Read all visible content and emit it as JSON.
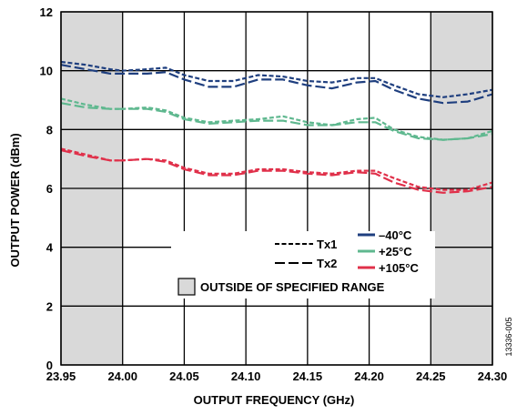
{
  "chart_data": {
    "type": "line",
    "title": "",
    "xlabel": "OUTPUT FREQUENCY (GHz)",
    "ylabel": "OUTPUT POWER (dBm)",
    "xlim": [
      23.95,
      24.3
    ],
    "ylim": [
      0,
      12
    ],
    "x_ticks": [
      23.95,
      24.0,
      24.05,
      24.1,
      24.15,
      24.2,
      24.25,
      24.3
    ],
    "x_tick_labels": [
      "23.95",
      "24.00",
      "24.05",
      "24.10",
      "24.15",
      "24.20",
      "24.25",
      "24.30"
    ],
    "y_ticks": [
      0,
      2,
      4,
      6,
      8,
      10,
      12
    ],
    "y_tick_labels": [
      "0",
      "2",
      "4",
      "6",
      "8",
      "10",
      "12"
    ],
    "grid": true,
    "legend_position": "lower-right",
    "legend": {
      "tx1": "Tx1",
      "tx2": "Tx2",
      "temp_neg40": "–40°C",
      "temp_25": "+25°C",
      "temp_105": "+105°C",
      "outside_range": "OUTSIDE OF SPECIFIED RANGE"
    },
    "shaded_ranges": [
      [
        23.95,
        24.0
      ],
      [
        24.25,
        24.3
      ]
    ],
    "colors": {
      "neg40": "#1f3f7f",
      "c25": "#5fb88f",
      "c105": "#e0304a",
      "shade": "#d9d9d9"
    },
    "figure_id": "13336-005",
    "series": [
      {
        "name": "Tx1",
        "temp": "neg40",
        "dash": "tx1",
        "x": [
          23.95,
          23.97,
          23.99,
          24.0,
          24.02,
          24.035,
          24.05,
          24.07,
          24.09,
          24.11,
          24.13,
          24.15,
          24.17,
          24.19,
          24.205,
          24.22,
          24.24,
          24.26,
          24.28,
          24.3
        ],
        "y": [
          10.3,
          10.2,
          10.05,
          10.0,
          10.05,
          10.1,
          9.85,
          9.65,
          9.65,
          9.85,
          9.8,
          9.65,
          9.6,
          9.75,
          9.75,
          9.5,
          9.2,
          9.1,
          9.2,
          9.35
        ]
      },
      {
        "name": "Tx2",
        "temp": "neg40",
        "dash": "tx2",
        "x": [
          23.95,
          23.97,
          23.99,
          24.0,
          24.02,
          24.035,
          24.05,
          24.07,
          24.09,
          24.11,
          24.13,
          24.15,
          24.17,
          24.19,
          24.205,
          24.22,
          24.24,
          24.26,
          24.28,
          24.3
        ],
        "y": [
          10.2,
          10.05,
          9.9,
          9.9,
          9.9,
          9.95,
          9.7,
          9.45,
          9.45,
          9.7,
          9.7,
          9.5,
          9.4,
          9.6,
          9.65,
          9.35,
          9.05,
          8.9,
          8.95,
          9.2
        ]
      },
      {
        "name": "Tx1",
        "temp": "c25",
        "dash": "tx1",
        "x": [
          23.95,
          23.97,
          23.99,
          24.0,
          24.02,
          24.035,
          24.05,
          24.07,
          24.09,
          24.11,
          24.13,
          24.15,
          24.17,
          24.19,
          24.205,
          24.22,
          24.24,
          24.26,
          24.28,
          24.3
        ],
        "y": [
          9.05,
          8.85,
          8.7,
          8.7,
          8.75,
          8.65,
          8.4,
          8.25,
          8.3,
          8.35,
          8.45,
          8.25,
          8.15,
          8.35,
          8.4,
          8.0,
          7.75,
          7.65,
          7.7,
          7.95
        ]
      },
      {
        "name": "Tx2",
        "temp": "c25",
        "dash": "tx2",
        "x": [
          23.95,
          23.97,
          23.99,
          24.0,
          24.02,
          24.035,
          24.05,
          24.07,
          24.09,
          24.11,
          24.13,
          24.15,
          24.17,
          24.19,
          24.205,
          24.22,
          24.24,
          24.26,
          24.28,
          24.3
        ],
        "y": [
          8.9,
          8.75,
          8.7,
          8.7,
          8.7,
          8.6,
          8.35,
          8.2,
          8.25,
          8.3,
          8.3,
          8.15,
          8.15,
          8.25,
          8.25,
          7.95,
          7.7,
          7.65,
          7.7,
          7.85
        ]
      },
      {
        "name": "Tx1",
        "temp": "c105",
        "dash": "tx1",
        "x": [
          23.95,
          23.97,
          23.99,
          24.0,
          24.02,
          24.035,
          24.05,
          24.07,
          24.09,
          24.11,
          24.13,
          24.15,
          24.17,
          24.19,
          24.205,
          24.22,
          24.24,
          24.26,
          24.28,
          24.3
        ],
        "y": [
          7.35,
          7.15,
          6.95,
          6.95,
          7.0,
          6.95,
          6.7,
          6.5,
          6.5,
          6.65,
          6.65,
          6.55,
          6.5,
          6.6,
          6.6,
          6.35,
          6.05,
          5.95,
          5.95,
          6.2
        ]
      },
      {
        "name": "Tx2",
        "temp": "c105",
        "dash": "tx2",
        "x": [
          23.95,
          23.97,
          23.99,
          24.0,
          24.02,
          24.035,
          24.05,
          24.07,
          24.09,
          24.11,
          24.13,
          24.15,
          24.17,
          24.19,
          24.205,
          24.22,
          24.24,
          24.26,
          24.28,
          24.3
        ],
        "y": [
          7.3,
          7.1,
          6.95,
          6.95,
          7.0,
          6.9,
          6.65,
          6.45,
          6.45,
          6.6,
          6.6,
          6.5,
          6.45,
          6.55,
          6.5,
          6.2,
          5.95,
          5.85,
          5.9,
          6.05
        ]
      }
    ]
  }
}
